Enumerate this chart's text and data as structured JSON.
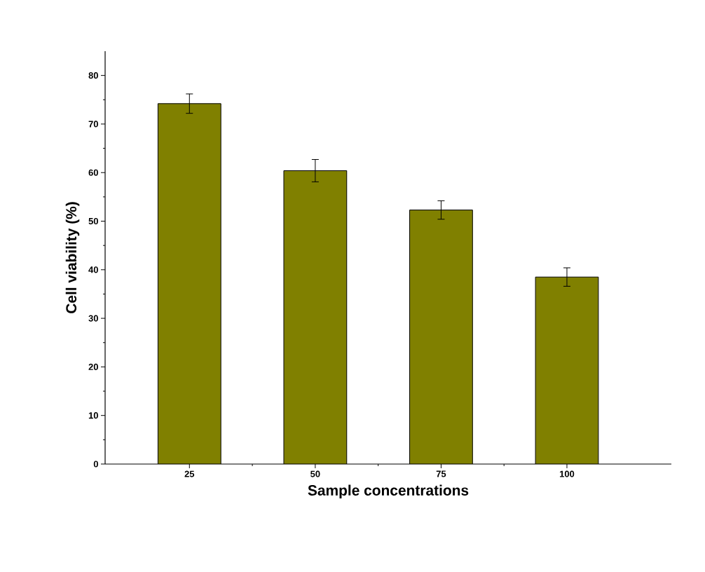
{
  "chart_data": {
    "type": "bar",
    "xlabel": "Sample concentrations",
    "ylabel": "Cell viability (%)",
    "categories": [
      "25",
      "50",
      "75",
      "100"
    ],
    "values": [
      74.2,
      60.4,
      52.3,
      38.5
    ],
    "errors": [
      2.0,
      2.3,
      1.9,
      1.9
    ],
    "color": "#808000",
    "ylim": [
      0,
      85
    ],
    "yticks": [
      0,
      10,
      20,
      30,
      40,
      50,
      60,
      70,
      80
    ]
  }
}
